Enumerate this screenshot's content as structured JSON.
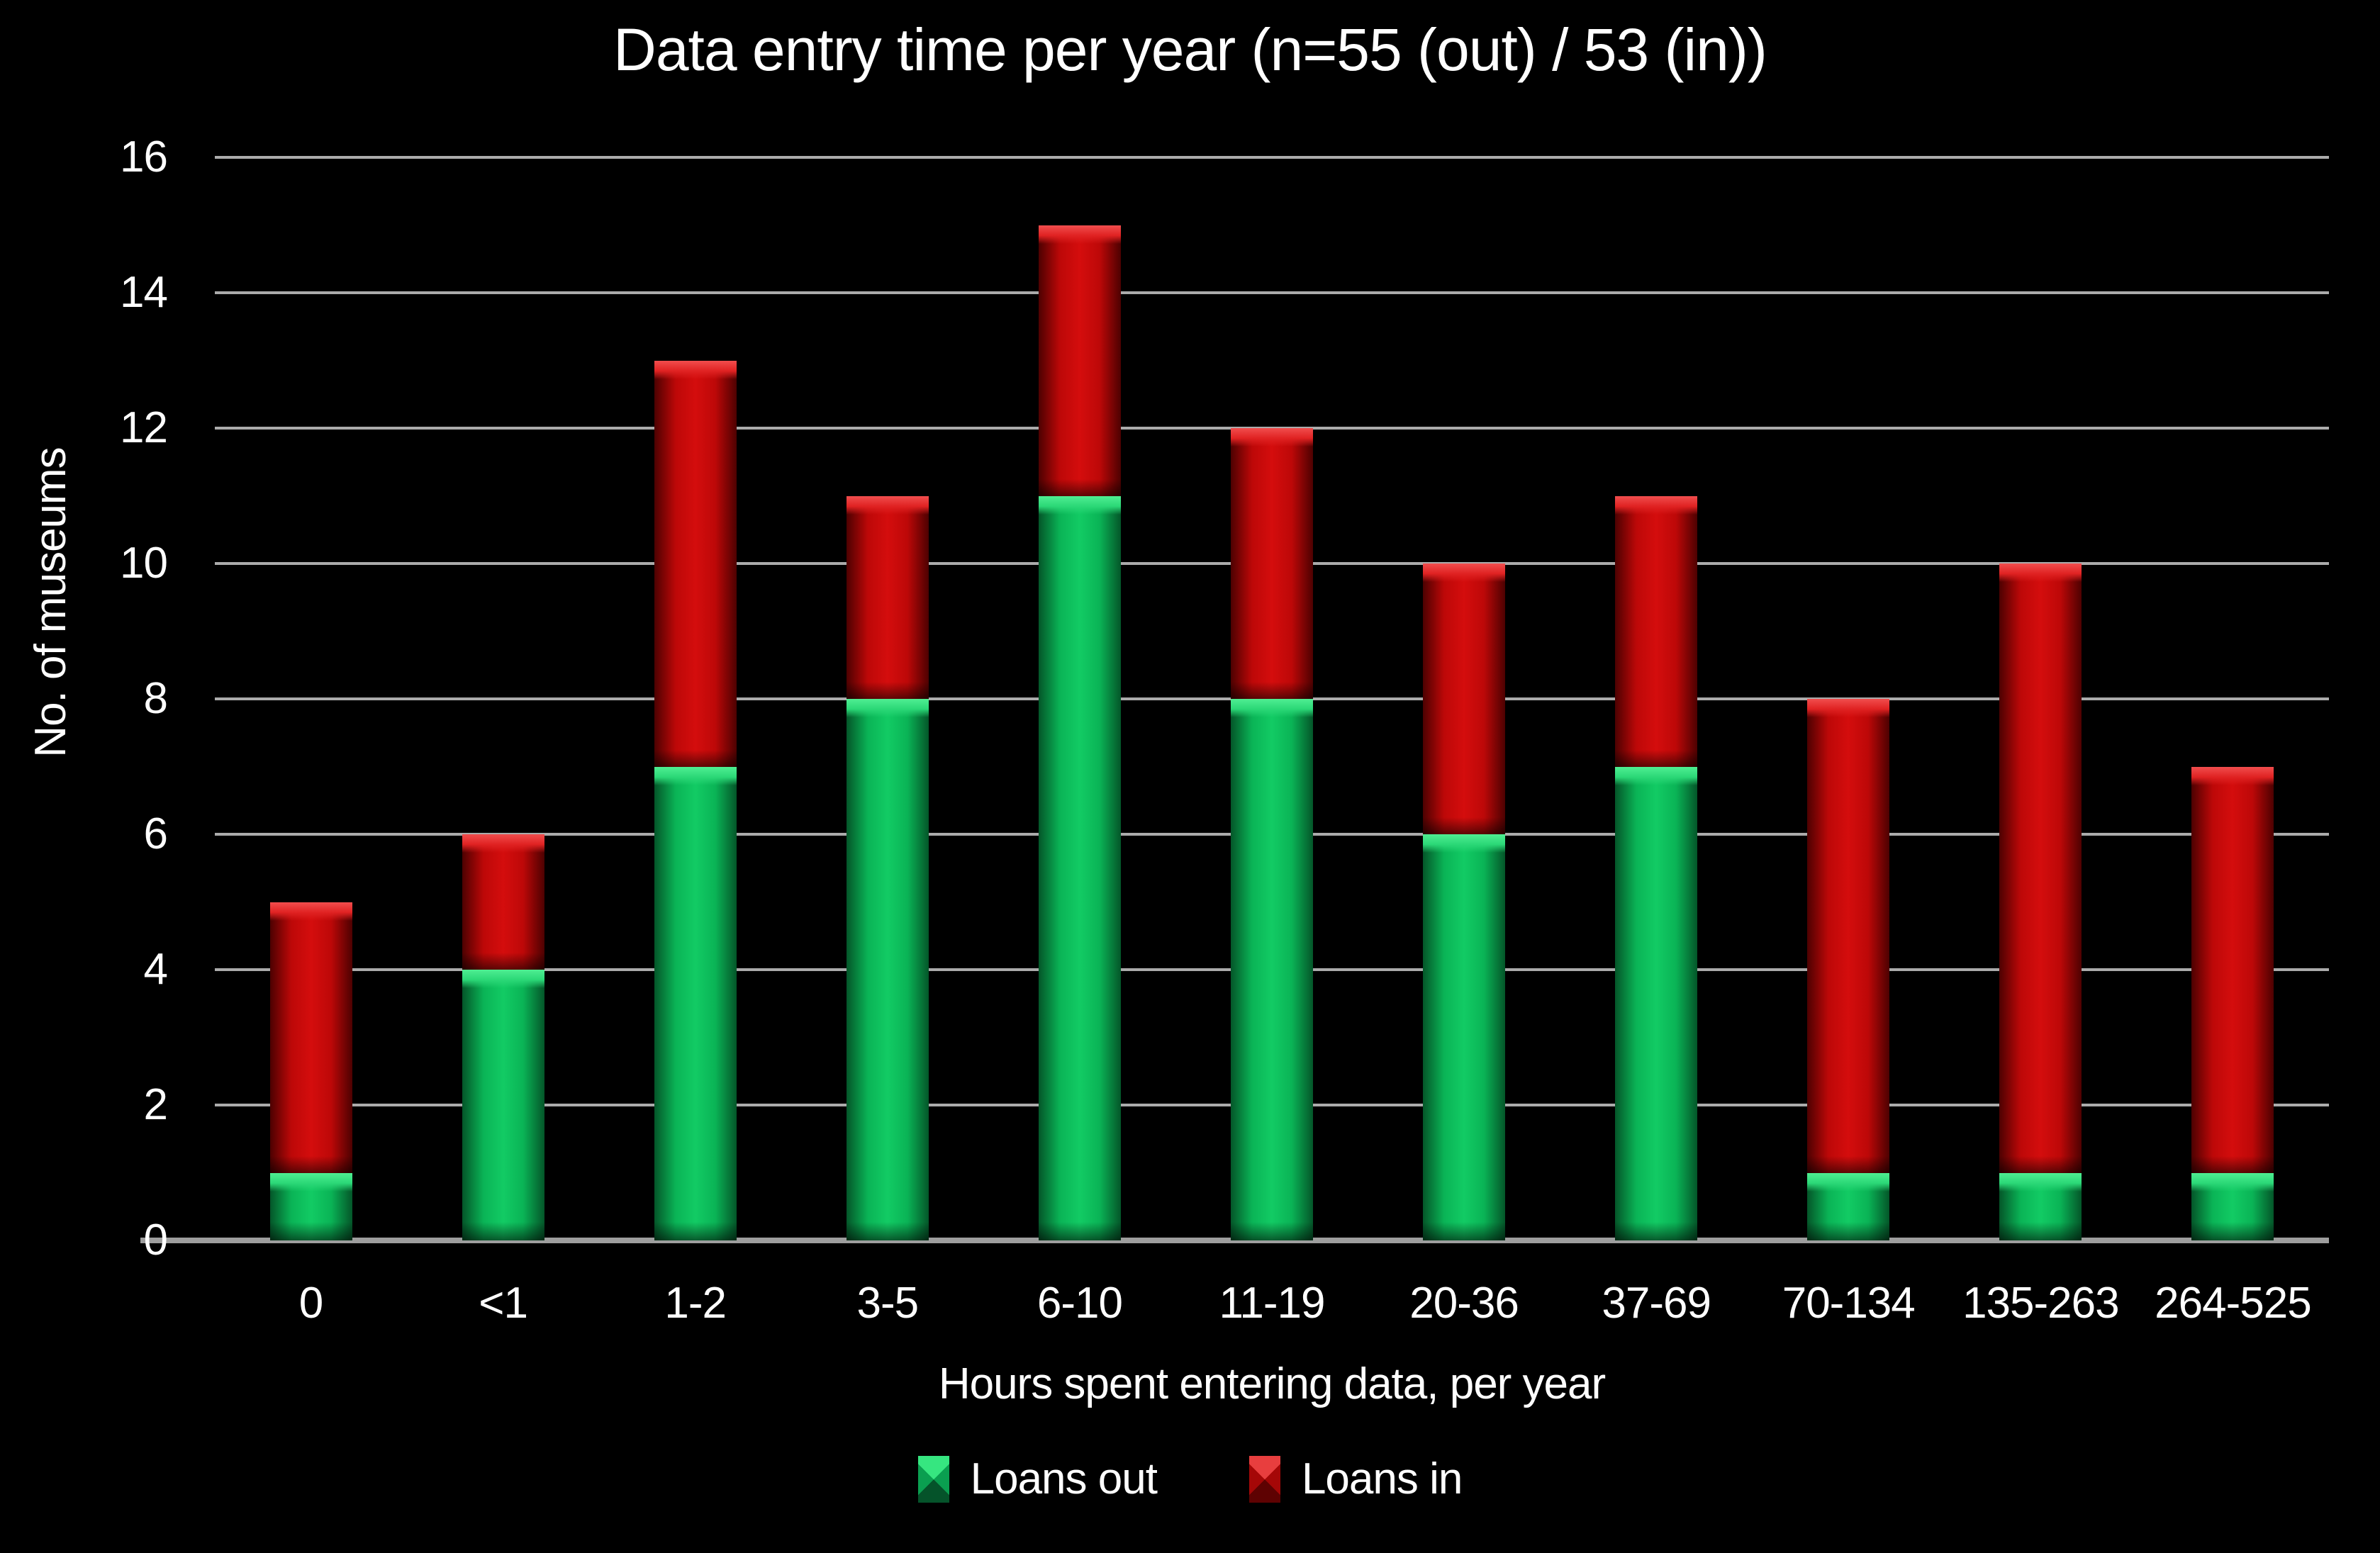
{
  "chart_data": {
    "type": "bar",
    "stacked": true,
    "title": "Data entry time per year (n=55 (out) / 53 (in))",
    "xlabel": "Hours spent entering data, per year",
    "ylabel": "No. of museums",
    "categories": [
      "0",
      "<1",
      "1-2",
      "3-5",
      "6-10",
      "11-19",
      "20-36",
      "37-69",
      "70-134",
      "135-263",
      "264-525"
    ],
    "series": [
      {
        "name": "Loans out",
        "color": "#0CBB5A",
        "values": [
          1,
          4,
          7,
          8,
          11,
          8,
          6,
          7,
          1,
          1,
          1
        ]
      },
      {
        "name": "Loans in",
        "color": "#C90B0B",
        "values": [
          4,
          2,
          6,
          3,
          4,
          4,
          4,
          4,
          7,
          9,
          6
        ]
      }
    ],
    "totals": [
      5,
      6,
      13,
      11,
      15,
      12,
      10,
      11,
      8,
      10,
      7
    ],
    "ylim": [
      0,
      16
    ],
    "yticks": [
      0,
      2,
      4,
      6,
      8,
      10,
      12,
      14,
      16
    ],
    "grid": true,
    "legend_position": "bottom",
    "colors": {
      "background": "#000000",
      "text": "#FFFFFF",
      "gridline": "#ABABAB",
      "axis_line": "#9E9E9E"
    }
  }
}
